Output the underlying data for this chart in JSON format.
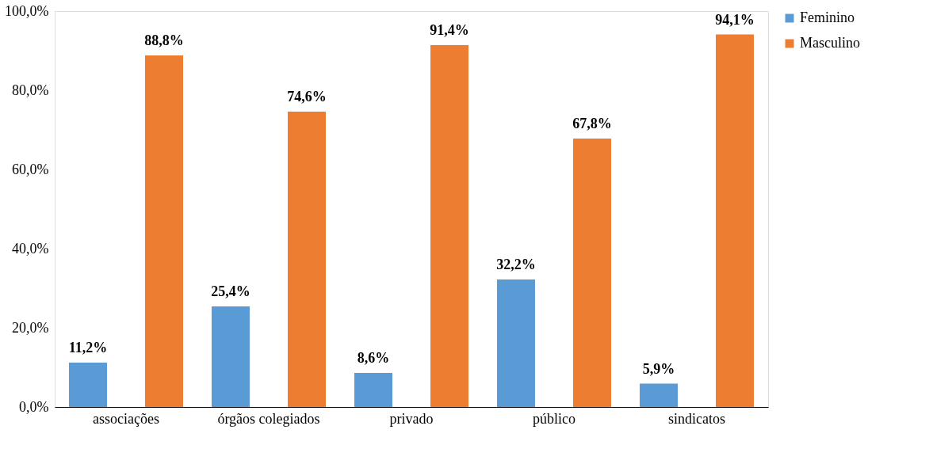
{
  "chart_data": {
    "type": "bar",
    "categories": [
      "associações",
      "órgãos colegiados",
      "privado",
      "público",
      "sindicatos"
    ],
    "series": [
      {
        "name": "Feminino",
        "color": "#5b9bd5",
        "values": [
          11.2,
          25.4,
          8.6,
          32.2,
          5.9
        ],
        "value_labels": [
          "11,2%",
          "25,4%",
          "8,6%",
          "32,2%",
          "5,9%"
        ]
      },
      {
        "name": "Masculino",
        "color": "#ed7d31",
        "values": [
          88.8,
          74.6,
          91.4,
          67.8,
          94.1
        ],
        "value_labels": [
          "88,8%",
          "74,6%",
          "91,4%",
          "67,8%",
          "94,1%"
        ]
      }
    ],
    "ylim": [
      0,
      100
    ],
    "yticks": [
      {
        "value": 0,
        "label": "0,0%"
      },
      {
        "value": 20,
        "label": "20,0%"
      },
      {
        "value": 40,
        "label": "40,0%"
      },
      {
        "value": 60,
        "label": "60,0%"
      },
      {
        "value": 80,
        "label": "80,0%"
      },
      {
        "value": 100,
        "label": "100,0%"
      }
    ],
    "grid": false,
    "legend": "right"
  }
}
